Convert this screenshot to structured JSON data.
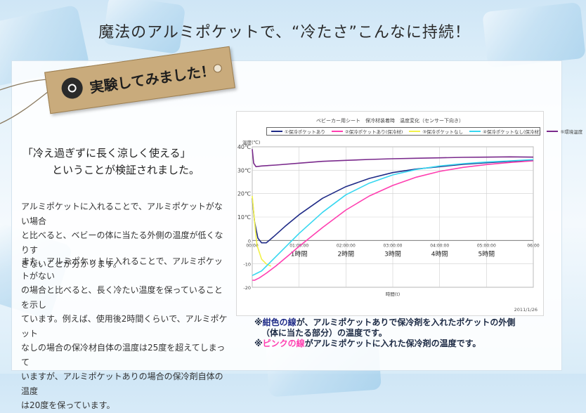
{
  "headline": "魔法のアルミポケットで、“冷たさ”こんなに持続！",
  "tag": {
    "text": "実験してみました！"
  },
  "quote": {
    "line1": "「冷え過ぎずに長く涼しく使える」",
    "line2": "ということが検証されました。"
  },
  "paragraph1": [
    "アルミポケットに入れることで、アルミポケットがない場合",
    "と比べると、ベビーの体に当たる外側の温度が低くなりす",
    "ぎないことが分かります。"
  ],
  "paragraph2": [
    "また、アルミポケットに入れることで、アルミポケットがない",
    "の場合と比べると、長く冷たい温度を保っていることを示し",
    "ています。例えば、使用後2時間くらいで、アルミポケット",
    "なしの場合の保冷材自体の温度は25度を超えてしまって",
    "いますが、アルミポケットありの場合の保冷剤自体の温度",
    "は20度を保っています。"
  ],
  "notes": {
    "mark": "※",
    "line1_emph": "紺色の線",
    "line1_rest": "が、アルミポケットありで保冷剤を入れたポケットの外側",
    "line2": "（体に当たる部分）の温度です。",
    "line3_emph": "ピンクの線",
    "line3_rest": "がアルミポケットに入れた保冷剤の温度です。"
  },
  "colors": {
    "navy": "#1f2b87",
    "pink": "#ff3fb0",
    "yellow": "#f2f24a",
    "cyan": "#37d7f0",
    "purple": "#7a2a8c"
  },
  "chart_data": {
    "type": "line",
    "title": "ベビーカー用シート　保冷材装着時　温度変化（センサー下向き）",
    "y_unit_label": "温度(℃)",
    "xlabel": "時間(t)",
    "date_stamp": "2011/1/26",
    "x_tick_labels": [
      "00:00",
      "01:00:00",
      "02:00:00",
      "03:00:00",
      "04:00:00",
      "05:00:00",
      "06:00"
    ],
    "x_hour_labels": [
      "1時間",
      "2時間",
      "3時間",
      "4時間",
      "5時間"
    ],
    "y_ticks": [
      40,
      30,
      20,
      10,
      0,
      -10,
      -20
    ],
    "y_tick_labels": [
      "40℃",
      "30℃",
      "20℃",
      "10℃",
      "0",
      "-10",
      "-20"
    ],
    "xlim": [
      0,
      6
    ],
    "ylim": [
      -20,
      40
    ],
    "grid": true,
    "legend_position": "top",
    "series": [
      {
        "name": "①保冷ポケットあり",
        "color": "#1f2b87",
        "x": [
          0,
          0.05,
          0.12,
          0.2,
          0.3,
          0.45,
          0.7,
          1.0,
          1.5,
          2.0,
          2.5,
          3.0,
          3.5,
          4.0,
          4.5,
          5.0,
          5.5,
          6.0
        ],
        "y": [
          18,
          8,
          1,
          -1,
          -1,
          1.5,
          6,
          11,
          18,
          23,
          26.5,
          29,
          30.5,
          31.5,
          32.5,
          33.2,
          33.8,
          34.3
        ]
      },
      {
        "name": "②保冷ポケットあり(保冷材)",
        "color": "#ff3fb0",
        "x": [
          0,
          0.05,
          0.15,
          0.3,
          0.5,
          0.8,
          1.0,
          1.5,
          2.0,
          2.5,
          3.0,
          3.5,
          4.0,
          4.5,
          5.0,
          5.5,
          6.0
        ],
        "y": [
          -17,
          -17,
          -16,
          -14,
          -11,
          -6,
          -2.5,
          5.5,
          13,
          19,
          23.5,
          27,
          29.5,
          31.2,
          32.4,
          33.3,
          34
        ]
      },
      {
        "name": "③保冷ポケットなし",
        "color": "#f2f24a",
        "x": [
          0,
          0.05,
          0.1,
          0.2,
          0.3,
          0.4
        ],
        "y": [
          19,
          8,
          -2,
          -8,
          -10,
          -11
        ]
      },
      {
        "name": "④保冷ポケットなし(保冷材)",
        "color": "#37d7f0",
        "x": [
          0,
          0.1,
          0.2,
          0.3,
          0.5,
          0.8,
          1.0,
          1.5,
          2.0,
          2.5,
          3.0,
          3.5,
          4.0,
          4.5,
          5.0,
          5.5,
          6.0
        ],
        "y": [
          -15,
          -14,
          -13,
          -11,
          -7,
          -1,
          3,
          12,
          19.5,
          24.5,
          28,
          30.3,
          31.8,
          32.8,
          33.5,
          34,
          34.5
        ]
      },
      {
        "name": "⑤環境温度",
        "color": "#7a2a8c",
        "x": [
          0,
          0.03,
          0.08,
          0.2,
          0.5,
          1.0,
          1.5,
          2.0,
          2.5,
          3.0,
          3.5,
          4.0,
          4.5,
          5.0,
          5.5,
          6.0
        ],
        "y": [
          39,
          33,
          31.5,
          31.8,
          32.2,
          33,
          33.8,
          34.2,
          34.6,
          34.9,
          35.1,
          35.3,
          35.5,
          35.6,
          35.7,
          35.6
        ]
      }
    ]
  }
}
